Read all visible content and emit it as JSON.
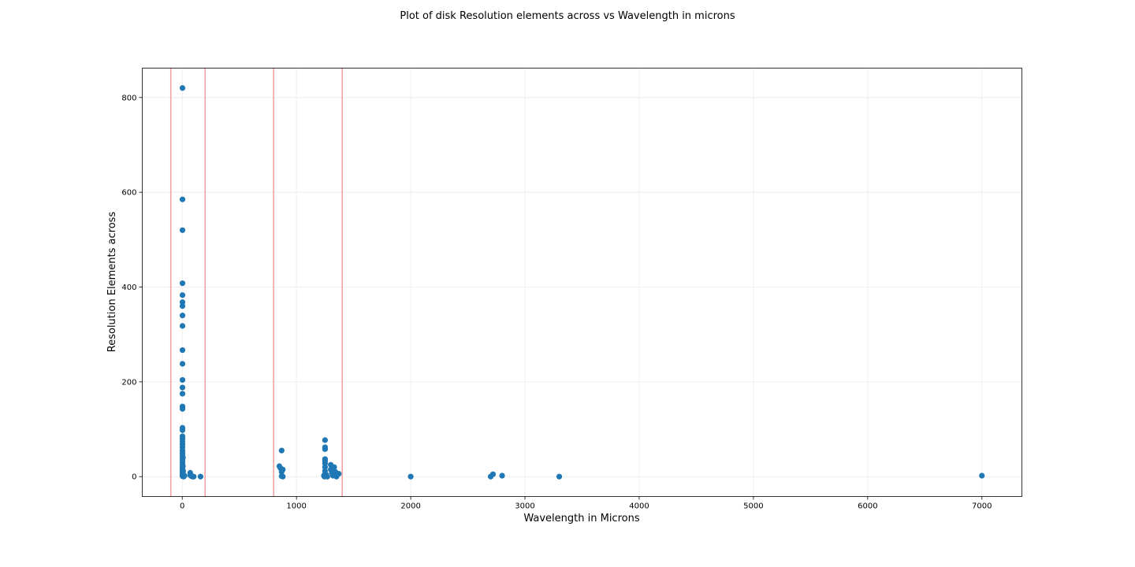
{
  "chart_data": {
    "type": "scatter",
    "title": "Plot of disk Resolution elements across vs Wavelength in microns",
    "xlabel": "Wavelength in Microns",
    "ylabel": "Resolution Elements across",
    "xlim": [
      -350,
      7350
    ],
    "ylim": [
      -42,
      862
    ],
    "xticks": [
      0,
      1000,
      2000,
      3000,
      4000,
      5000,
      6000,
      7000
    ],
    "yticks": [
      0,
      200,
      400,
      600,
      800
    ],
    "grid": true,
    "vlines": [
      -100,
      200,
      800,
      1400
    ],
    "vline_color": "#f4a3a3",
    "marker_color": "#1f77b4",
    "points": [
      [
        2,
        820
      ],
      [
        2,
        585
      ],
      [
        2,
        520
      ],
      [
        2,
        408
      ],
      [
        2,
        383
      ],
      [
        2,
        368
      ],
      [
        2,
        360
      ],
      [
        2,
        340
      ],
      [
        2,
        318
      ],
      [
        2,
        267
      ],
      [
        2,
        238
      ],
      [
        2,
        204
      ],
      [
        2,
        188
      ],
      [
        2,
        175
      ],
      [
        2,
        148
      ],
      [
        2,
        143
      ],
      [
        2,
        103
      ],
      [
        2,
        98
      ],
      [
        2,
        85
      ],
      [
        2,
        80
      ],
      [
        2,
        74
      ],
      [
        2,
        68
      ],
      [
        2,
        62
      ],
      [
        2,
        55
      ],
      [
        2,
        50
      ],
      [
        2,
        45
      ],
      [
        2,
        40
      ],
      [
        2,
        35
      ],
      [
        2,
        30
      ],
      [
        2,
        25
      ],
      [
        2,
        20
      ],
      [
        2,
        15
      ],
      [
        2,
        10
      ],
      [
        2,
        6
      ],
      [
        2,
        3
      ],
      [
        2,
        1
      ],
      [
        6,
        40
      ],
      [
        6,
        22
      ],
      [
        8,
        12
      ],
      [
        8,
        5
      ],
      [
        10,
        2
      ],
      [
        12,
        0
      ],
      [
        15,
        1
      ],
      [
        20,
        2
      ],
      [
        70,
        8
      ],
      [
        70,
        3
      ],
      [
        80,
        1
      ],
      [
        90,
        0
      ],
      [
        100,
        0
      ],
      [
        160,
        0
      ],
      [
        850,
        22
      ],
      [
        860,
        18
      ],
      [
        870,
        55
      ],
      [
        870,
        10
      ],
      [
        870,
        1
      ],
      [
        880,
        15
      ],
      [
        880,
        0
      ],
      [
        1240,
        2
      ],
      [
        1245,
        0
      ],
      [
        1250,
        77
      ],
      [
        1250,
        62
      ],
      [
        1250,
        58
      ],
      [
        1250,
        37
      ],
      [
        1250,
        33
      ],
      [
        1250,
        28
      ],
      [
        1250,
        20
      ],
      [
        1250,
        12
      ],
      [
        1250,
        6
      ],
      [
        1260,
        4
      ],
      [
        1270,
        0
      ],
      [
        1300,
        25
      ],
      [
        1300,
        15
      ],
      [
        1310,
        8
      ],
      [
        1320,
        2
      ],
      [
        1330,
        20
      ],
      [
        1340,
        10
      ],
      [
        1350,
        0
      ],
      [
        1370,
        6
      ],
      [
        2000,
        0
      ],
      [
        2700,
        0
      ],
      [
        2720,
        5
      ],
      [
        2800,
        2
      ],
      [
        3300,
        0
      ],
      [
        7000,
        2
      ]
    ]
  }
}
